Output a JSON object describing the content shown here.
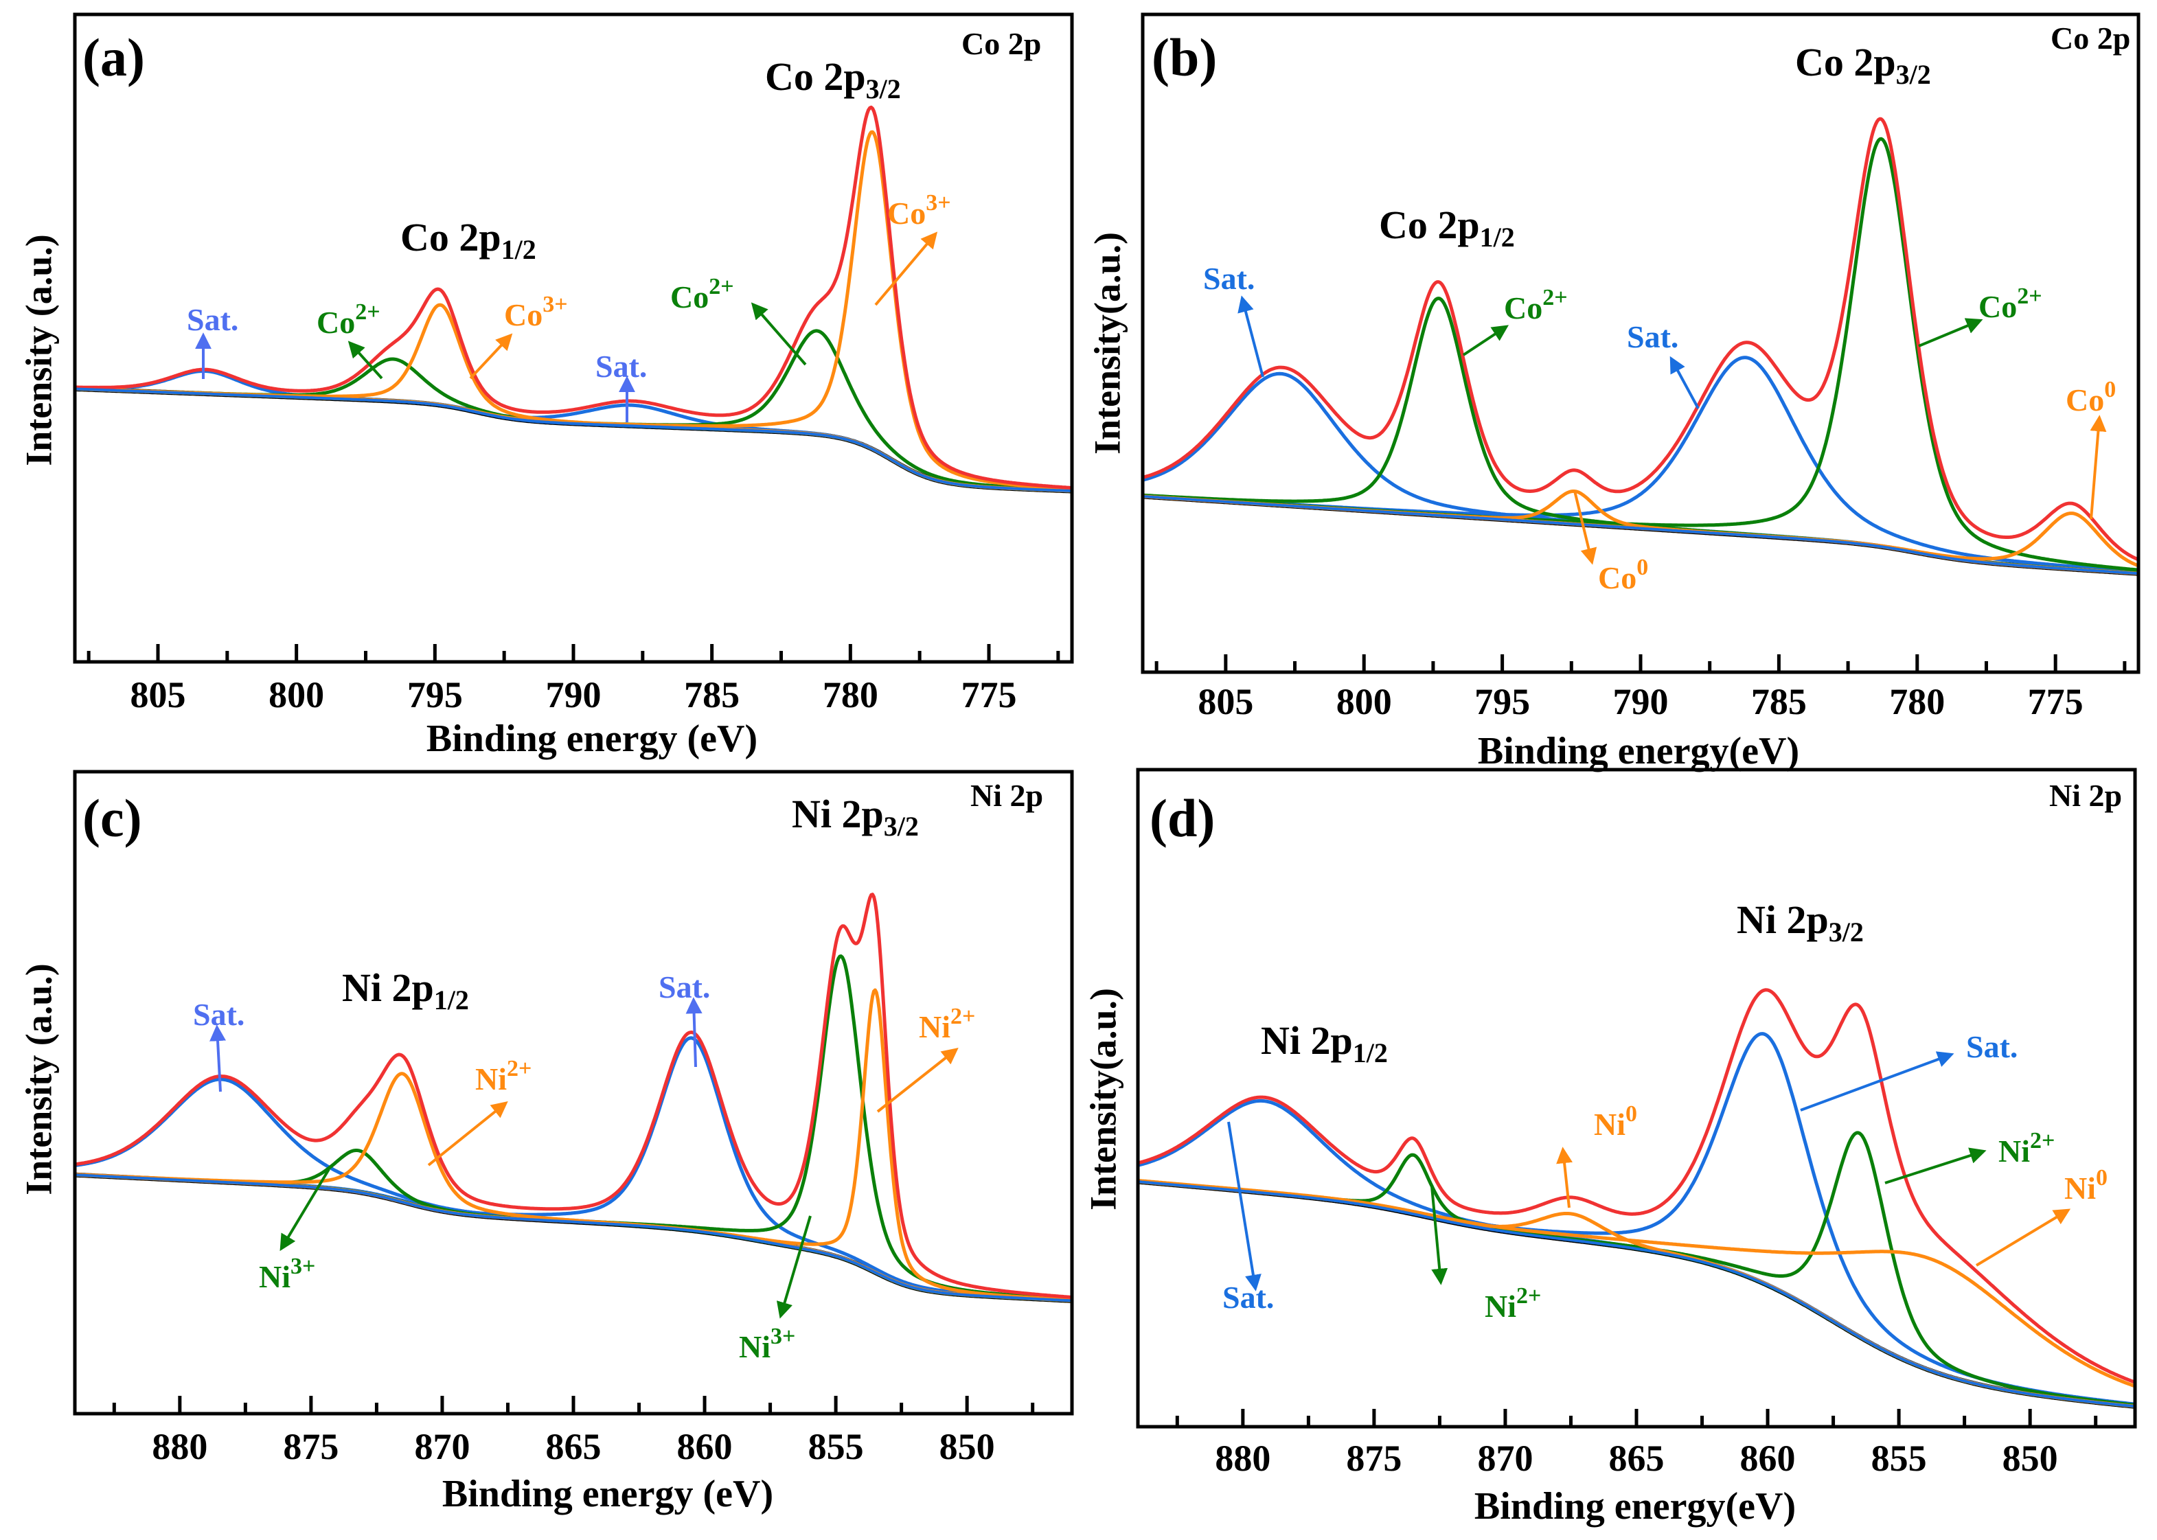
{
  "colors": {
    "envelope": "#f03232",
    "green": "#0a800a",
    "orange": "#ff8a10",
    "blue": "#1a6fdf",
    "sat_light_blue": "#4f6ff0",
    "background_line": "#000000",
    "text": "#000000"
  },
  "chart_data": [
    {
      "panel": "(a)",
      "type": "line",
      "region_label": "Co 2p",
      "xlabel": "Binding energy (eV)",
      "ylabel": "Intensity (a.u.)",
      "xlim": [
        808,
        772
      ],
      "ylim": [
        0,
        100
      ],
      "xticks": [
        805,
        800,
        795,
        790,
        785,
        780,
        775
      ],
      "xtick_labels": [
        "805",
        "800",
        "795",
        "790",
        "785",
        "780",
        "775"
      ],
      "minor_tick_step": 2.5,
      "y_ticks_shown": false,
      "peak_labels": [
        {
          "text": "Co 2p",
          "sub": "3/2"
        },
        {
          "text": "Co 2p",
          "sub": "1/2"
        }
      ],
      "annotations": [
        {
          "text": "Sat.",
          "sup": "",
          "color": "#4f6ff0"
        },
        {
          "text": "Co",
          "sup": "2+",
          "color": "#0a800a"
        },
        {
          "text": "Co",
          "sup": "3+",
          "color": "#ff8a10"
        },
        {
          "text": "Sat.",
          "sup": "",
          "color": "#4f6ff0"
        },
        {
          "text": "Co",
          "sup": "2+",
          "color": "#0a800a"
        },
        {
          "text": "Co",
          "sup": "3+",
          "color": "#ff8a10"
        }
      ],
      "background": {
        "low_energy_value": 26.4,
        "slope_per_eV": 0.16,
        "steps": [
          {
            "center": 793.5,
            "height": 2.5,
            "width": 0.8
          },
          {
            "center": 778.5,
            "height": 7.5,
            "width": 0.8
          }
        ]
      },
      "components": [
        {
          "assignment": "Sat.",
          "center_eV": 803.3,
          "height": 3.5,
          "fwhm_eV": 3.0,
          "color": "#1a6fdf"
        },
        {
          "assignment": "Co2+",
          "center_eV": 796.5,
          "height": 6.5,
          "fwhm_eV": 2.5,
          "color": "#0a800a"
        },
        {
          "assignment": "Co3+",
          "center_eV": 794.8,
          "height": 15.5,
          "fwhm_eV": 1.8,
          "color": "#ff8a10"
        },
        {
          "assignment": "Sat.",
          "center_eV": 787.9,
          "height": 3.2,
          "fwhm_eV": 4.0,
          "color": "#1a6fdf"
        },
        {
          "assignment": "Co2+",
          "center_eV": 781.2,
          "height": 16,
          "fwhm_eV": 2.5,
          "color": "#0a800a"
        },
        {
          "assignment": "Co3+",
          "center_eV": 779.2,
          "height": 49,
          "fwhm_eV": 1.7,
          "color": "#ff8a10"
        }
      ]
    },
    {
      "panel": "(b)",
      "type": "line",
      "region_label": "Co 2p",
      "xlabel": "Binding energy(eV)",
      "ylabel": "Intensity(a.u.)",
      "xlim": [
        808,
        772
      ],
      "ylim": [
        0,
        100
      ],
      "xticks": [
        805,
        800,
        795,
        790,
        785,
        780,
        775
      ],
      "xtick_labels": [
        "805",
        "800",
        "795",
        "790",
        "785",
        "780",
        "775"
      ],
      "minor_tick_step": 2.5,
      "y_ticks_shown": false,
      "peak_labels": [
        {
          "text": "Co 2p",
          "sub": "3/2"
        },
        {
          "text": "Co 2p",
          "sub": "1/2"
        }
      ],
      "annotations": [
        {
          "text": "Sat.",
          "sup": "",
          "color": "#1a6fdf"
        },
        {
          "text": "Co",
          "sup": "2+",
          "color": "#0a800a"
        },
        {
          "text": "Co",
          "sup": "0",
          "color": "#ff8a10"
        },
        {
          "text": "Sat.",
          "sup": "",
          "color": "#1a6fdf"
        },
        {
          "text": "Co",
          "sup": "2+",
          "color": "#0a800a"
        },
        {
          "text": "Co",
          "sup": "0",
          "color": "#ff8a10"
        }
      ],
      "background": {
        "low_energy_value": 15,
        "slope_per_eV": 0.27,
        "steps": [
          {
            "center": 780,
            "height": 2,
            "width": 1
          }
        ]
      },
      "components": [
        {
          "assignment": "Sat.",
          "center_eV": 803.0,
          "height": 20,
          "fwhm_eV": 5.0,
          "color": "#1a6fdf"
        },
        {
          "assignment": "Co2+",
          "center_eV": 797.3,
          "height": 33,
          "fwhm_eV": 2.4,
          "color": "#0a800a"
        },
        {
          "assignment": "Co0",
          "center_eV": 792.4,
          "height": 5,
          "fwhm_eV": 1.8,
          "color": "#ff8a10"
        },
        {
          "assignment": "Sat.",
          "center_eV": 786.2,
          "height": 27,
          "fwhm_eV": 4.5,
          "color": "#1a6fdf"
        },
        {
          "assignment": "Co2+",
          "center_eV": 781.3,
          "height": 62,
          "fwhm_eV": 2.6,
          "color": "#0a800a"
        },
        {
          "assignment": "Co0",
          "center_eV": 774.4,
          "height": 8.5,
          "fwhm_eV": 2.5,
          "color": "#ff8a10"
        }
      ]
    },
    {
      "panel": "(c)",
      "type": "line",
      "region_label": "Ni 2p",
      "xlabel": "Binding energy (eV)",
      "ylabel": "Intensity (a.u.)",
      "xlim": [
        884,
        846
      ],
      "ylim": [
        0,
        100
      ],
      "xticks": [
        880,
        875,
        870,
        865,
        860,
        855,
        850
      ],
      "xtick_labels": [
        "880",
        "875",
        "870",
        "865",
        "860",
        "855",
        "850"
      ],
      "minor_tick_step": 2.5,
      "y_ticks_shown": false,
      "peak_labels": [
        {
          "text": "Ni 2p",
          "sub": "3/2"
        },
        {
          "text": "Ni 2p",
          "sub": "1/2"
        }
      ],
      "annotations": [
        {
          "text": "Sat.",
          "sup": "",
          "color": "#4f6ff0"
        },
        {
          "text": "Ni",
          "sup": "3+",
          "color": "#0a800a"
        },
        {
          "text": "Ni",
          "sup": "2+",
          "color": "#ff8a10"
        },
        {
          "text": "Sat.",
          "sup": "",
          "color": "#4f6ff0"
        },
        {
          "text": "Ni",
          "sup": "3+",
          "color": "#0a800a"
        },
        {
          "text": "Ni",
          "sup": "2+",
          "color": "#ff8a10"
        }
      ],
      "background": {
        "low_energy_value": 17.6,
        "slope_per_eV": 0.2,
        "steps": [
          {
            "center": 853.5,
            "height": 5.5,
            "width": 0.8
          },
          {
            "center": 858,
            "height": 3,
            "width": 1.5
          },
          {
            "center": 871.5,
            "height": 3.5,
            "width": 1
          }
        ]
      },
      "components": [
        {
          "assignment": "Sat.",
          "center_eV": 878.4,
          "height": 16,
          "fwhm_eV": 5.0,
          "color": "#1a6fdf"
        },
        {
          "assignment": "Ni3+",
          "center_eV": 873.2,
          "height": 6.5,
          "fwhm_eV": 2.2,
          "color": "#0a800a"
        },
        {
          "assignment": "Ni2+",
          "center_eV": 871.5,
          "height": 20,
          "fwhm_eV": 2.2,
          "color": "#ff8a10"
        },
        {
          "assignment": "Sat.",
          "center_eV": 860.5,
          "height": 30,
          "fwhm_eV": 3.0,
          "color": "#1a6fdf"
        },
        {
          "assignment": "Ni3+",
          "center_eV": 854.8,
          "height": 47,
          "fwhm_eV": 1.8,
          "color": "#0a800a"
        },
        {
          "assignment": "Ni2+",
          "center_eV": 853.5,
          "height": 44,
          "fwhm_eV": 1.1,
          "color": "#ff8a10"
        }
      ]
    },
    {
      "panel": "(d)",
      "type": "line",
      "region_label": "Ni 2p",
      "xlabel": "Binding energy(eV)",
      "ylabel": "Intensity(a.u.)",
      "xlim": [
        884,
        846
      ],
      "ylim": [
        0,
        100
      ],
      "xticks": [
        880,
        875,
        870,
        865,
        860,
        855,
        850
      ],
      "xtick_labels": [
        "880",
        "875",
        "870",
        "865",
        "860",
        "855",
        "850"
      ],
      "minor_tick_step": 2.5,
      "y_ticks_shown": false,
      "peak_labels": [
        {
          "text": "Ni 2p",
          "sub": "3/2"
        },
        {
          "text": "Ni 2p",
          "sub": "1/2"
        }
      ],
      "annotations": [
        {
          "text": "Sat.",
          "sup": "",
          "color": "#1a6fdf"
        },
        {
          "text": "Ni",
          "sup": "2+",
          "color": "#0a800a"
        },
        {
          "text": "Ni",
          "sup": "0",
          "color": "#ff8a10"
        },
        {
          "text": "Ni",
          "sup": "0",
          "color": "#ff8a10"
        },
        {
          "text": "Sat.",
          "sup": "",
          "color": "#1a6fdf"
        },
        {
          "text": "Ni",
          "sup": "2+",
          "color": "#0a800a"
        }
      ],
      "background": {
        "low_energy_value": 3,
        "slope_per_eV": 0.35,
        "steps": [
          {
            "center": 857.5,
            "height": 18,
            "width": 2.2
          },
          {
            "center": 873,
            "height": 3,
            "width": 1.5
          }
        ]
      },
      "components": [
        {
          "assignment": "Sat.",
          "center_eV": 879.2,
          "height": 14,
          "fwhm_eV": 5.5,
          "color": "#1a6fdf"
        },
        {
          "assignment": "Ni2+",
          "center_eV": 873.5,
          "height": 9,
          "fwhm_eV": 1.5,
          "color": "#0a800a"
        },
        {
          "assignment": "Ni0",
          "center_eV": 867.5,
          "height": 4,
          "fwhm_eV": 3.0,
          "color": "#ff8a10"
        },
        {
          "assignment": "Sat.",
          "center_eV": 860.1,
          "height": 38,
          "fwhm_eV": 4.0,
          "color": "#1a6fdf"
        },
        {
          "assignment": "Ni2+",
          "center_eV": 856.5,
          "height": 31,
          "fwhm_eV": 2.5,
          "color": "#0a800a"
        },
        {
          "assignment": "Ni0",
          "center_eV": 853.8,
          "height": 17,
          "fwhm_eV": 9.0,
          "color": "#ff8a10"
        }
      ]
    }
  ]
}
